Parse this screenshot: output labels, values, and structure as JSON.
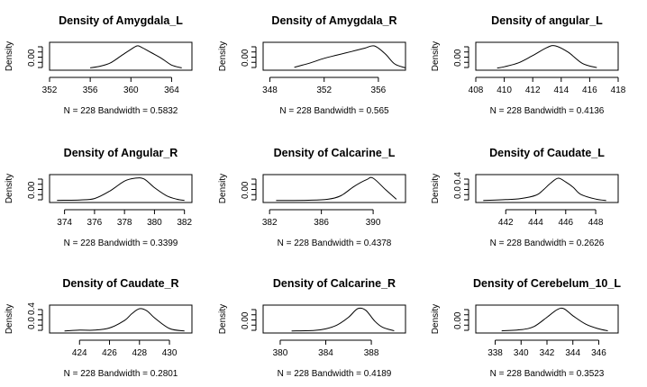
{
  "chart_data": [
    {
      "type": "line",
      "title": "Density of Amygdala_L",
      "ylabel": "Density",
      "xlabel": "N = 228   Bandwidth = 0.5832",
      "xlim": [
        352,
        366
      ],
      "xticks": [
        352,
        356,
        360,
        364
      ],
      "yticks": [
        "0.00"
      ],
      "series": [
        {
          "x": [
            356,
            357,
            358,
            359,
            360,
            360.6,
            361,
            362,
            363,
            364,
            365
          ],
          "y": [
            0.005,
            0.02,
            0.05,
            0.11,
            0.17,
            0.2,
            0.19,
            0.14,
            0.09,
            0.03,
            0.005
          ]
        }
      ]
    },
    {
      "type": "line",
      "title": "Density of Amygdala_R",
      "ylabel": "Density",
      "xlabel": "N = 228   Bandwidth = 0.565",
      "xlim": [
        347.5,
        358
      ],
      "xticks": [
        348,
        352,
        356
      ],
      "yticks": [
        "0.00"
      ],
      "series": [
        {
          "x": [
            349.8,
            351,
            352,
            353,
            354,
            355,
            355.7,
            356.5,
            357.2,
            358
          ],
          "y": [
            0.01,
            0.05,
            0.09,
            0.12,
            0.15,
            0.18,
            0.2,
            0.13,
            0.04,
            0.005
          ]
        }
      ]
    },
    {
      "type": "line",
      "title": "Density of angular_L",
      "ylabel": "Density",
      "xlabel": "N = 228   Bandwidth = 0.4136",
      "xlim": [
        408,
        418
      ],
      "xticks": [
        408,
        410,
        412,
        414,
        416,
        418
      ],
      "yticks": [
        "0.00"
      ],
      "series": [
        {
          "x": [
            409.5,
            410,
            411,
            412,
            413,
            413.6,
            414.5,
            415.5,
            416.5
          ],
          "y": [
            0.005,
            0.02,
            0.07,
            0.16,
            0.26,
            0.28,
            0.2,
            0.06,
            0.01
          ]
        }
      ]
    },
    {
      "type": "line",
      "title": "Density of Angular_R",
      "ylabel": "Density",
      "xlabel": "N = 228   Bandwidth = 0.3399",
      "xlim": [
        373,
        382.5
      ],
      "xticks": [
        374,
        376,
        378,
        380,
        382
      ],
      "yticks": [
        "0.00"
      ],
      "series": [
        {
          "x": [
            373.5,
            375,
            376,
            377,
            378,
            378.7,
            379.3,
            380,
            380.8,
            381.5,
            382
          ],
          "y": [
            0.005,
            0.01,
            0.03,
            0.13,
            0.27,
            0.31,
            0.3,
            0.18,
            0.07,
            0.02,
            0.005
          ]
        }
      ]
    },
    {
      "type": "line",
      "title": "Density of Calcarine_L",
      "ylabel": "Density",
      "xlabel": "N = 228   Bandwidth = 0.4378",
      "xlim": [
        381.5,
        392.5
      ],
      "xticks": [
        382,
        386,
        390
      ],
      "yticks": [
        "0.00"
      ],
      "series": [
        {
          "x": [
            382.5,
            385,
            386.5,
            387.5,
            388.5,
            389.5,
            390,
            391,
            391.8
          ],
          "y": [
            0.003,
            0.006,
            0.02,
            0.07,
            0.2,
            0.3,
            0.32,
            0.15,
            0.02
          ]
        }
      ]
    },
    {
      "type": "line",
      "title": "Density of Caudate_L",
      "ylabel": "Density",
      "xlabel": "N = 228   Bandwidth = 0.2626",
      "xlim": [
        440,
        449.5
      ],
      "xticks": [
        442,
        444,
        446,
        448
      ],
      "yticks": [
        "0.0",
        "0.4"
      ],
      "series": [
        {
          "x": [
            440.5,
            442,
            443,
            444,
            444.5,
            445,
            445.5,
            446,
            446.5,
            447,
            448,
            448.7
          ],
          "y": [
            0.005,
            0.02,
            0.04,
            0.1,
            0.2,
            0.33,
            0.42,
            0.35,
            0.25,
            0.12,
            0.03,
            0.005
          ]
        }
      ]
    },
    {
      "type": "line",
      "title": "Density of Caudate_R",
      "ylabel": "Density",
      "xlabel": "N = 228   Bandwidth = 0.2801",
      "xlim": [
        422,
        431.5
      ],
      "xticks": [
        424,
        426,
        428,
        430
      ],
      "yticks": [
        "0.0",
        "0.4"
      ],
      "series": [
        {
          "x": [
            423,
            424,
            425,
            426,
            427,
            427.5,
            428,
            428.5,
            429,
            430,
            431
          ],
          "y": [
            0.005,
            0.02,
            0.02,
            0.06,
            0.2,
            0.33,
            0.42,
            0.38,
            0.25,
            0.05,
            0.005
          ]
        }
      ]
    },
    {
      "type": "line",
      "title": "Density of Calcarine_R",
      "ylabel": "Density",
      "xlabel": "N = 228   Bandwidth = 0.4189",
      "xlim": [
        378.5,
        391
      ],
      "xticks": [
        380,
        384,
        388
      ],
      "yticks": [
        "0.00"
      ],
      "series": [
        {
          "x": [
            381,
            383,
            384,
            385,
            386,
            386.8,
            387.5,
            388.3,
            389,
            390
          ],
          "y": [
            0.003,
            0.01,
            0.03,
            0.08,
            0.18,
            0.29,
            0.27,
            0.13,
            0.05,
            0.005
          ]
        }
      ]
    },
    {
      "type": "line",
      "title": "Density of Cerebelum_10_L",
      "ylabel": "Density",
      "xlabel": "N = 228   Bandwidth = 0.3523",
      "xlim": [
        336.5,
        347.5
      ],
      "xticks": [
        338,
        340,
        342,
        344,
        346
      ],
      "yticks": [
        "0.00"
      ],
      "series": [
        {
          "x": [
            338.5,
            340,
            341,
            342,
            342.8,
            343.3,
            344,
            345,
            346,
            346.7
          ],
          "y": [
            0.005,
            0.02,
            0.06,
            0.18,
            0.28,
            0.29,
            0.2,
            0.09,
            0.03,
            0.005
          ]
        }
      ]
    }
  ]
}
